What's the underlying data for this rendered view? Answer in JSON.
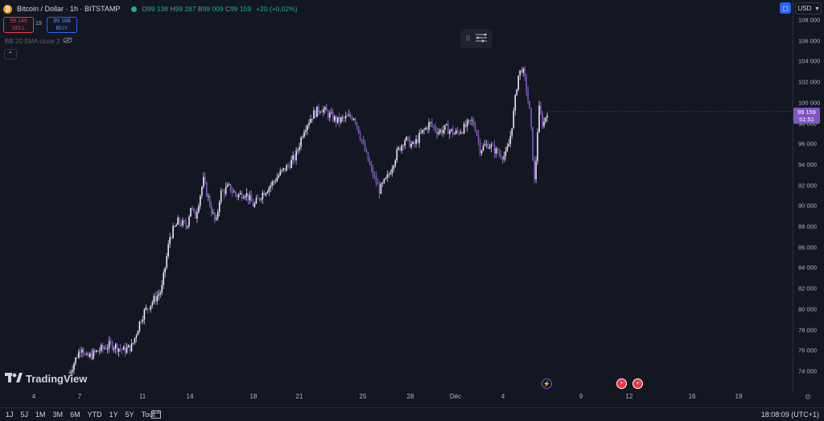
{
  "header": {
    "coin_icon": "bitcoin-icon",
    "symbol": "Bitcoin / Dollar · 1h · BITSTAMP",
    "open_label": "O",
    "open": "99 138",
    "high_label": "H",
    "high": "99 287",
    "low_label": "B",
    "low": "99 009",
    "close_label": "C",
    "close": "99 159",
    "change": "+20 (+0,02%)"
  },
  "trade": {
    "sell_price": "99 149",
    "sell_label": "SELL",
    "spread": "19",
    "buy_price": "99 168",
    "buy_label": "BUY"
  },
  "indicator": {
    "label": "BB 20 SMA close 2",
    "icon": "eye-hidden-icon"
  },
  "price_axis": {
    "currency": "USD",
    "ticks": [
      "108 000",
      "106 000",
      "104 000",
      "102 000",
      "100 000",
      "98 000",
      "96 000",
      "94 000",
      "92 000",
      "90 000",
      "88 000",
      "86 000",
      "84 000",
      "82 000",
      "80 000",
      "78 000",
      "76 000",
      "74 000"
    ],
    "last_price": "99 159",
    "countdown": "51:51"
  },
  "time_axis": {
    "ticks": [
      "4",
      "7",
      "11",
      "14",
      "18",
      "21",
      "25",
      "28",
      "Déc",
      "4",
      "9",
      "12",
      "16",
      "19"
    ]
  },
  "brand": {
    "name": "TradingView"
  },
  "bottom_bar": {
    "ranges": [
      "1J",
      "5J",
      "1M",
      "3M",
      "6M",
      "YTD",
      "1Y",
      "5Y",
      "Tout"
    ],
    "clock": "18:08:09 (UTC+1)"
  },
  "colors": {
    "candle": "#b39ddb",
    "accent": "#7e57c2",
    "up": "#22ab94",
    "down": "#f23645",
    "blue": "#2962ff",
    "bg": "#131722"
  },
  "chart_data": {
    "type": "candlestick",
    "timeframe": "1h",
    "ylim": [
      73000,
      109000
    ],
    "x_tick_labels": [
      "4",
      "7",
      "11",
      "14",
      "18",
      "21",
      "25",
      "28",
      "Déc",
      "4",
      "9",
      "12",
      "16",
      "19"
    ],
    "path_points": [
      [
        0,
        73800
      ],
      [
        3,
        76500
      ],
      [
        4,
        75200
      ],
      [
        7,
        76000
      ],
      [
        10,
        76600
      ],
      [
        13,
        76000
      ],
      [
        15,
        76400
      ],
      [
        17,
        79000
      ],
      [
        18,
        79800
      ],
      [
        20,
        80800
      ],
      [
        22,
        81800
      ],
      [
        24,
        87000
      ],
      [
        26,
        88500
      ],
      [
        28,
        88000
      ],
      [
        29,
        90000
      ],
      [
        30,
        88800
      ],
      [
        32,
        92500
      ],
      [
        34,
        89500
      ],
      [
        35,
        88200
      ],
      [
        36,
        91200
      ],
      [
        38,
        91800
      ],
      [
        40,
        91000
      ],
      [
        42,
        91300
      ],
      [
        44,
        90000
      ],
      [
        46,
        91200
      ],
      [
        48,
        92000
      ],
      [
        50,
        93000
      ],
      [
        52,
        93800
      ],
      [
        54,
        94800
      ],
      [
        56,
        97500
      ],
      [
        58,
        98800
      ],
      [
        60,
        99500
      ],
      [
        62,
        98800
      ],
      [
        64,
        98200
      ],
      [
        66,
        98500
      ],
      [
        68,
        98700
      ],
      [
        70,
        96000
      ],
      [
        72,
        93500
      ],
      [
        74,
        91500
      ],
      [
        76,
        92800
      ],
      [
        78,
        95000
      ],
      [
        80,
        96500
      ],
      [
        82,
        95800
      ],
      [
        84,
        97000
      ],
      [
        86,
        98000
      ],
      [
        88,
        97200
      ],
      [
        90,
        97500
      ],
      [
        92,
        97000
      ],
      [
        94,
        97500
      ],
      [
        96,
        98200
      ],
      [
        97,
        97500
      ],
      [
        98,
        95500
      ],
      [
        100,
        96000
      ],
      [
        102,
        95200
      ],
      [
        104,
        94800
      ],
      [
        105,
        96200
      ],
      [
        106,
        99000
      ],
      [
        107,
        102500
      ],
      [
        108,
        103400
      ],
      [
        109,
        101500
      ],
      [
        110,
        98500
      ],
      [
        111,
        92000
      ],
      [
        112,
        99500
      ],
      [
        113,
        97800
      ],
      [
        114,
        99200
      ]
    ],
    "annotations": [
      "99 159",
      "51:51"
    ]
  }
}
